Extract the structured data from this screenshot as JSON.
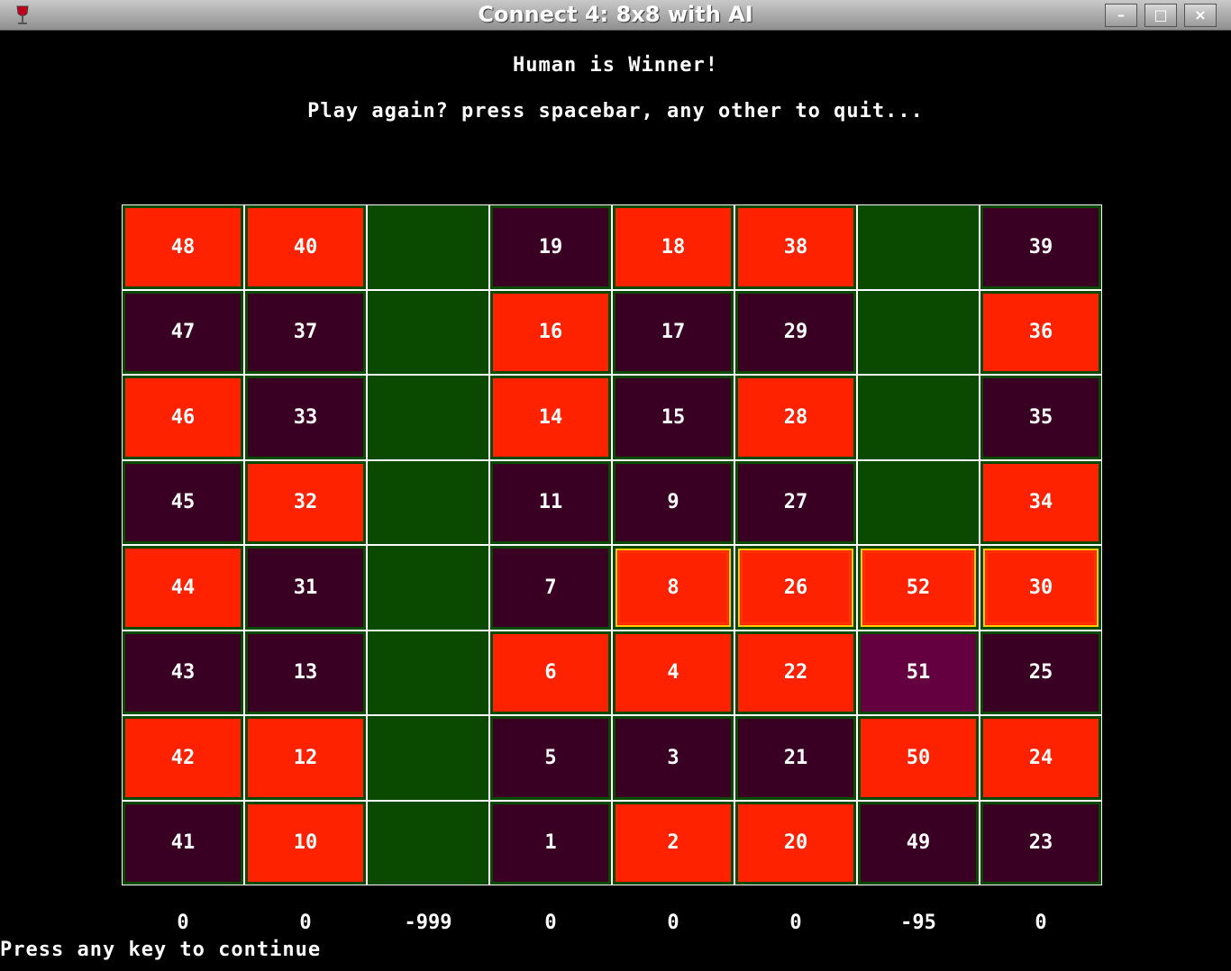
{
  "window": {
    "title": "Connect 4: 8x8 with AI",
    "buttons": {
      "minimize": "–",
      "maximize": "□",
      "close": "×"
    }
  },
  "messages": {
    "winner": "Human is Winner!",
    "play_again": "Play again? press spacebar, any other to quit..."
  },
  "board": {
    "colors": {
      "human": "#ff2200",
      "ai": "#3a0024",
      "empty": "#0a4a00",
      "last_move": "#640040",
      "win_outline": "#ffcc00"
    },
    "rows": [
      [
        {
          "n": "48",
          "c": "r"
        },
        {
          "n": "40",
          "c": "r"
        },
        {
          "n": "",
          "c": "e"
        },
        {
          "n": "19",
          "c": "p"
        },
        {
          "n": "18",
          "c": "r"
        },
        {
          "n": "38",
          "c": "r"
        },
        {
          "n": "",
          "c": "e"
        },
        {
          "n": "39",
          "c": "p"
        }
      ],
      [
        {
          "n": "47",
          "c": "p"
        },
        {
          "n": "37",
          "c": "p"
        },
        {
          "n": "",
          "c": "e"
        },
        {
          "n": "16",
          "c": "r"
        },
        {
          "n": "17",
          "c": "p"
        },
        {
          "n": "29",
          "c": "p"
        },
        {
          "n": "",
          "c": "e"
        },
        {
          "n": "36",
          "c": "r"
        }
      ],
      [
        {
          "n": "46",
          "c": "r"
        },
        {
          "n": "33",
          "c": "p"
        },
        {
          "n": "",
          "c": "e"
        },
        {
          "n": "14",
          "c": "r"
        },
        {
          "n": "15",
          "c": "p"
        },
        {
          "n": "28",
          "c": "r"
        },
        {
          "n": "",
          "c": "e"
        },
        {
          "n": "35",
          "c": "p"
        }
      ],
      [
        {
          "n": "45",
          "c": "p"
        },
        {
          "n": "32",
          "c": "r"
        },
        {
          "n": "",
          "c": "e"
        },
        {
          "n": "11",
          "c": "p"
        },
        {
          "n": "9",
          "c": "p"
        },
        {
          "n": "27",
          "c": "p"
        },
        {
          "n": "",
          "c": "e"
        },
        {
          "n": "34",
          "c": "r"
        }
      ],
      [
        {
          "n": "44",
          "c": "r"
        },
        {
          "n": "31",
          "c": "p"
        },
        {
          "n": "",
          "c": "e"
        },
        {
          "n": "7",
          "c": "p"
        },
        {
          "n": "8",
          "c": "r",
          "win": true
        },
        {
          "n": "26",
          "c": "r",
          "win": true
        },
        {
          "n": "52",
          "c": "r",
          "win": true
        },
        {
          "n": "30",
          "c": "r",
          "win": true
        }
      ],
      [
        {
          "n": "43",
          "c": "p"
        },
        {
          "n": "13",
          "c": "p"
        },
        {
          "n": "",
          "c": "e"
        },
        {
          "n": "6",
          "c": "r"
        },
        {
          "n": "4",
          "c": "r"
        },
        {
          "n": "22",
          "c": "r"
        },
        {
          "n": "51",
          "c": "p",
          "last": true
        },
        {
          "n": "25",
          "c": "p"
        }
      ],
      [
        {
          "n": "42",
          "c": "r"
        },
        {
          "n": "12",
          "c": "r"
        },
        {
          "n": "",
          "c": "e"
        },
        {
          "n": "5",
          "c": "p"
        },
        {
          "n": "3",
          "c": "p"
        },
        {
          "n": "21",
          "c": "p"
        },
        {
          "n": "50",
          "c": "r"
        },
        {
          "n": "24",
          "c": "r"
        }
      ],
      [
        {
          "n": "41",
          "c": "p"
        },
        {
          "n": "10",
          "c": "r"
        },
        {
          "n": "",
          "c": "e"
        },
        {
          "n": "1",
          "c": "p"
        },
        {
          "n": "2",
          "c": "r"
        },
        {
          "n": "20",
          "c": "r"
        },
        {
          "n": "49",
          "c": "p"
        },
        {
          "n": "23",
          "c": "p"
        }
      ]
    ]
  },
  "scores": [
    "0",
    "0",
    "-999",
    "0",
    "0",
    "0",
    "-95",
    "0"
  ],
  "footer": "Press any key to continue"
}
